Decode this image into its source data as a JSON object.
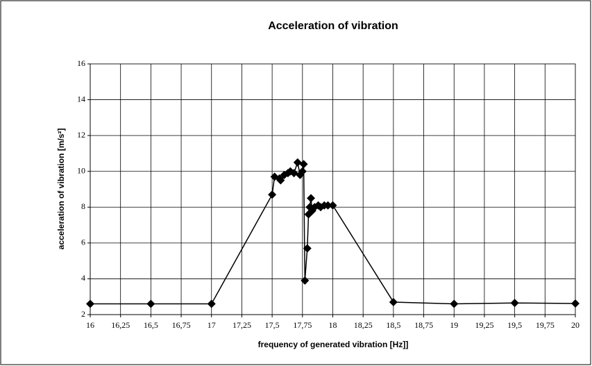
{
  "chart_data": {
    "type": "line",
    "title": "Acceleration of vibration",
    "xlabel": "frequency of generated vibration [Hz]]",
    "ylabel": "acceleration of vibration [m/s²]",
    "color": "#000000",
    "grid": true,
    "x": [
      16,
      16.5,
      17,
      17.5,
      17.52,
      17.56,
      17.57,
      17.6,
      17.63,
      17.65,
      17.68,
      17.71,
      17.73,
      17.75,
      17.76,
      17.77,
      17.79,
      17.8,
      17.81,
      17.82,
      17.83,
      17.85,
      17.88,
      17.9,
      17.93,
      17.96,
      18,
      18.5,
      19,
      19.5,
      20
    ],
    "values": [
      2.6,
      2.6,
      2.6,
      8.7,
      9.7,
      9.6,
      9.5,
      9.8,
      9.9,
      10.0,
      9.9,
      10.5,
      9.8,
      10.0,
      10.4,
      3.9,
      5.7,
      7.6,
      8.0,
      8.5,
      7.8,
      8.0,
      8.1,
      8.0,
      8.1,
      8.1,
      8.1,
      2.7,
      2.6,
      2.65,
      2.62
    ],
    "xlim": [
      16,
      20
    ],
    "xticks": [
      16,
      {
        "value": 16.25,
        "label": "16,25"
      },
      {
        "value": 16.5,
        "label": "16,5"
      },
      {
        "value": 16.75,
        "label": "16,75"
      },
      17,
      {
        "value": 17.25,
        "label": "17,25"
      },
      {
        "value": 17.5,
        "label": "17,5"
      },
      {
        "value": 17.75,
        "label": "17,75"
      },
      18,
      {
        "value": 18.25,
        "label": "18,25"
      },
      {
        "value": 18.5,
        "label": "18,5"
      },
      {
        "value": 18.75,
        "label": "18,75"
      },
      19,
      {
        "value": 19.25,
        "label": "19,25"
      },
      {
        "value": 19.5,
        "label": "19,5"
      },
      {
        "value": 19.75,
        "label": "19,75"
      },
      20
    ],
    "ylim": [
      2,
      16
    ],
    "yticks": [
      2,
      4,
      6,
      8,
      10,
      12,
      14,
      16
    ]
  }
}
